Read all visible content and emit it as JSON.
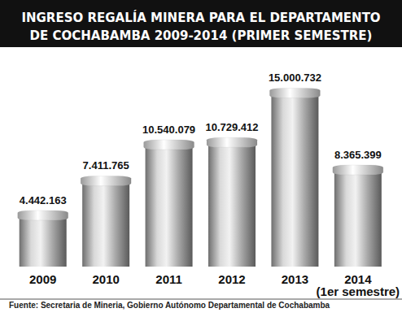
{
  "chart_data": {
    "type": "bar",
    "title": "INGRESO REGALÍA MINERA PARA EL DEPARTAMENTO\nDE COCHABAMBA 2009-2014 (PRIMER SEMESTRE)",
    "source": "Fuente: Secretaria de Mineria, Gobierno Autónomo Departamental de Cochabamba",
    "categories": [
      "2009",
      "2010",
      "2011",
      "2012",
      "2013",
      "2014\n(1er semestre)"
    ],
    "values": [
      4442163,
      7411765,
      10540079,
      10729412,
      15000732,
      8365399
    ],
    "value_labels": [
      "4.442.163",
      "7.411.765",
      "10.540.079",
      "10.729.412",
      "15.000.732",
      "8.365.399"
    ],
    "color": "#a9a9a9",
    "ylim": [
      0,
      16000000
    ],
    "grid": false,
    "data_labels": true,
    "tick_labels": "x"
  }
}
